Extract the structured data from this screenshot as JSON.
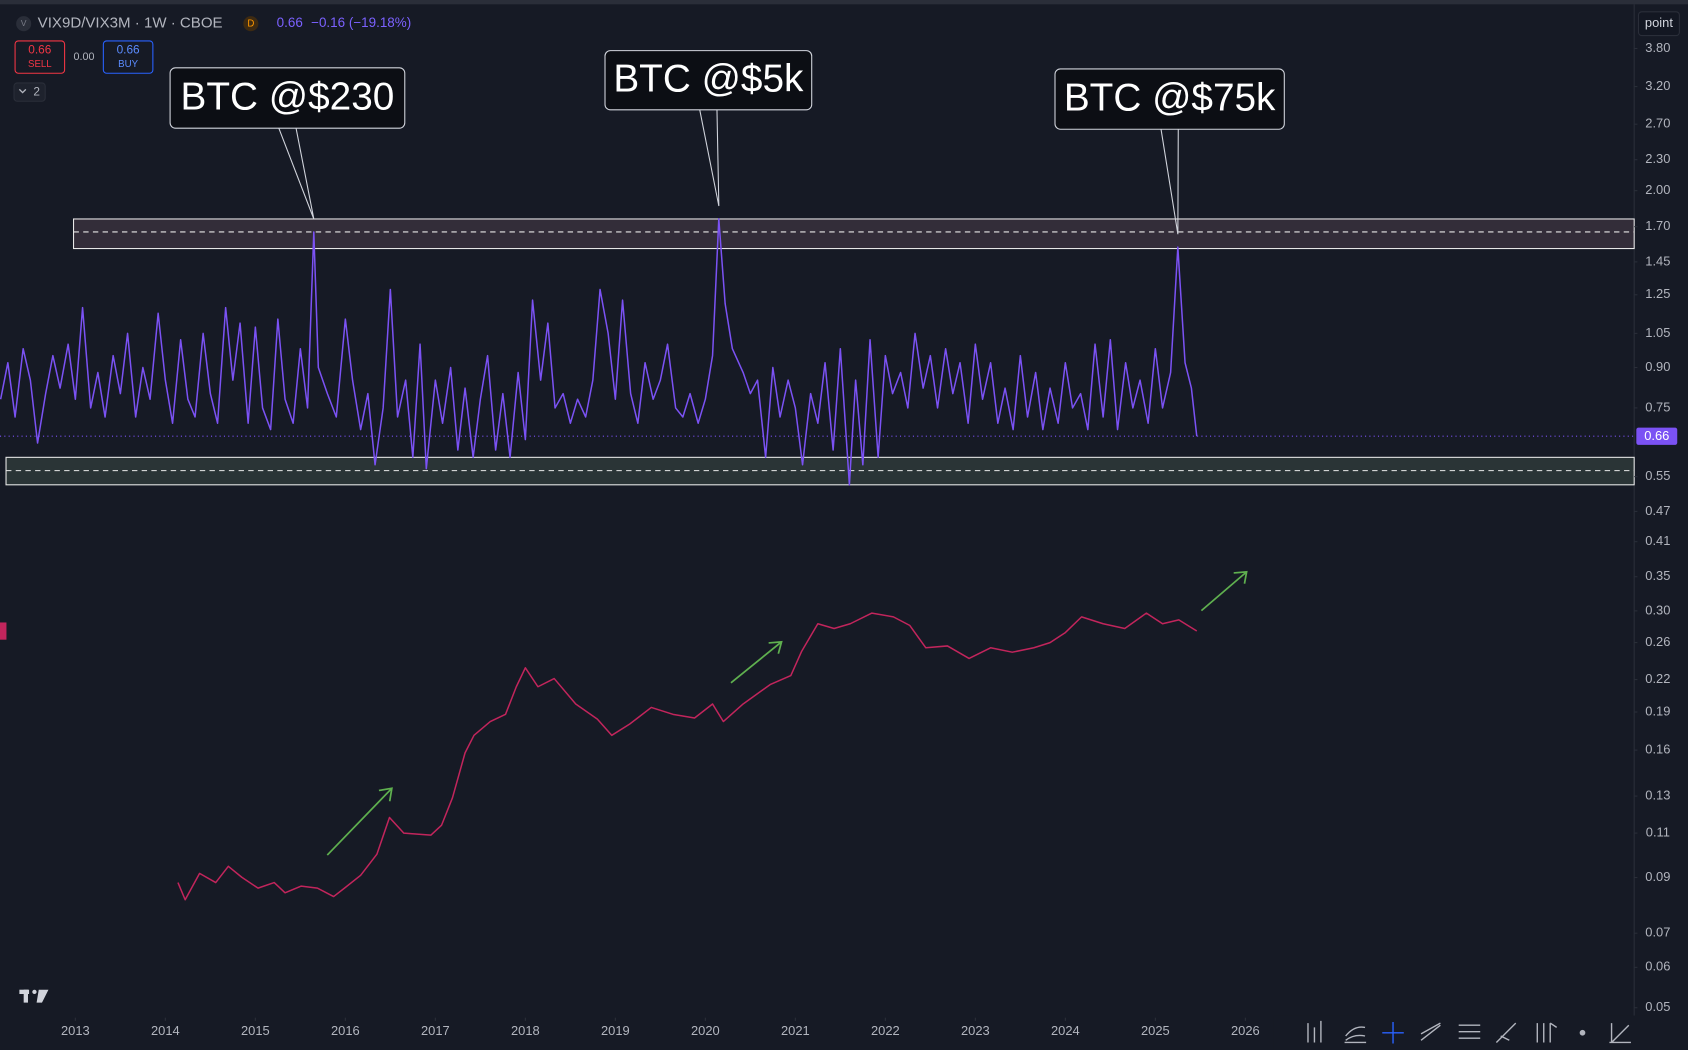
{
  "chart_data": {
    "type": "line",
    "title": "VIX9D/VIX3M · 1W · CBOE",
    "symbol_icon": "V",
    "session_badge": "D",
    "quote": "0.66",
    "change": "−0.16 (−19.18%)",
    "trade": {
      "sell": "0.66",
      "sell_label": "SELL",
      "spread": "0.00",
      "buy": "0.66",
      "buy_label": "BUY"
    },
    "indicator_count": "2",
    "mode_button": "point",
    "log_scale": true,
    "grid": false,
    "xlim": [
      2012.163,
      2030.32
    ],
    "ylim": [
      0.0478,
      4.73
    ],
    "xticks": [
      2013,
      2014,
      2015,
      2016,
      2017,
      2018,
      2019,
      2020,
      2021,
      2022,
      2023,
      2024,
      2025,
      2026
    ],
    "yticks": [
      {
        "value": 3.8,
        "label": "3.80"
      },
      {
        "value": 3.2,
        "label": "3.20"
      },
      {
        "value": 2.7,
        "label": "2.70"
      },
      {
        "value": 2.3,
        "label": "2.30"
      },
      {
        "value": 2.0,
        "label": "2.00"
      },
      {
        "value": 1.7,
        "label": "1.70"
      },
      1.45,
      1.25,
      1.05,
      {
        "value": 0.9,
        "label": "0.90"
      },
      0.75,
      0.55,
      0.47,
      0.41,
      0.35,
      {
        "value": 0.3,
        "label": "0.30"
      },
      0.26,
      0.22,
      0.19,
      0.16,
      0.13,
      0.11,
      0.09,
      0.07,
      0.06,
      0.05
    ],
    "last_price": {
      "value": 0.66,
      "label": "0.66"
    },
    "bands": [
      {
        "top": 1.76,
        "mid": 1.66,
        "bottom": 1.54,
        "from": 2012.98,
        "color": "#e8a0b8"
      },
      {
        "top": 0.6,
        "mid": 0.565,
        "bottom": 0.53,
        "from": 2012.23,
        "color": "#a8d8a0"
      }
    ],
    "annotations": [
      {
        "text": "BTC @$230",
        "x": 2015.65,
        "y": 1.66
      },
      {
        "text": "BTC @$5k",
        "x": 2020.15,
        "y": 1.76
      },
      {
        "text": "BTC @$75k",
        "x": 2025.25,
        "y": 1.55
      }
    ],
    "series": [
      {
        "color": "#7b52f4",
        "x": [
          2012.17,
          2012.25,
          2012.33,
          2012.42,
          2012.5,
          2012.58,
          2012.67,
          2012.75,
          2012.83,
          2012.92,
          2013.0,
          2013.08,
          2013.17,
          2013.25,
          2013.33,
          2013.42,
          2013.5,
          2013.58,
          2013.67,
          2013.75,
          2013.83,
          2013.92,
          2014.0,
          2014.08,
          2014.17,
          2014.25,
          2014.33,
          2014.42,
          2014.5,
          2014.58,
          2014.67,
          2014.75,
          2014.83,
          2014.92,
          2015.0,
          2015.08,
          2015.17,
          2015.25,
          2015.33,
          2015.42,
          2015.5,
          2015.58,
          2015.65,
          2015.7,
          2015.8,
          2015.9,
          2016.0,
          2016.08,
          2016.17,
          2016.25,
          2016.33,
          2016.42,
          2016.5,
          2016.58,
          2016.67,
          2016.75,
          2016.83,
          2016.9,
          2017.0,
          2017.08,
          2017.17,
          2017.25,
          2017.33,
          2017.42,
          2017.5,
          2017.58,
          2017.67,
          2017.75,
          2017.83,
          2017.92,
          2018.0,
          2018.08,
          2018.17,
          2018.25,
          2018.33,
          2018.42,
          2018.5,
          2018.58,
          2018.67,
          2018.75,
          2018.83,
          2018.92,
          2019.0,
          2019.08,
          2019.17,
          2019.25,
          2019.33,
          2019.42,
          2019.5,
          2019.58,
          2019.67,
          2019.75,
          2019.83,
          2019.92,
          2020.0,
          2020.08,
          2020.15,
          2020.22,
          2020.3,
          2020.42,
          2020.5,
          2020.58,
          2020.67,
          2020.75,
          2020.83,
          2020.92,
          2021.0,
          2021.08,
          2021.17,
          2021.25,
          2021.33,
          2021.42,
          2021.5,
          2021.6,
          2021.67,
          2021.75,
          2021.83,
          2021.92,
          2022.0,
          2022.08,
          2022.17,
          2022.25,
          2022.33,
          2022.42,
          2022.5,
          2022.58,
          2022.67,
          2022.75,
          2022.83,
          2022.92,
          2023.0,
          2023.08,
          2023.17,
          2023.25,
          2023.33,
          2023.42,
          2023.5,
          2023.58,
          2023.67,
          2023.75,
          2023.83,
          2023.92,
          2024.0,
          2024.08,
          2024.17,
          2024.25,
          2024.33,
          2024.42,
          2024.5,
          2024.58,
          2024.67,
          2024.75,
          2024.83,
          2024.92,
          2025.0,
          2025.08,
          2025.17,
          2025.25,
          2025.33,
          2025.4,
          2025.46
        ],
        "values": [
          0.78,
          0.92,
          0.72,
          0.98,
          0.85,
          0.64,
          0.8,
          0.95,
          0.82,
          1.0,
          0.78,
          1.18,
          0.75,
          0.88,
          0.72,
          0.95,
          0.8,
          1.05,
          0.72,
          0.9,
          0.78,
          1.15,
          0.85,
          0.7,
          1.02,
          0.78,
          0.72,
          1.05,
          0.8,
          0.7,
          1.18,
          0.85,
          1.1,
          0.7,
          1.08,
          0.75,
          0.68,
          1.12,
          0.78,
          0.7,
          0.98,
          0.75,
          1.66,
          0.9,
          0.8,
          0.72,
          1.12,
          0.85,
          0.68,
          0.8,
          0.58,
          0.75,
          1.28,
          0.72,
          0.85,
          0.6,
          1.0,
          0.57,
          0.85,
          0.7,
          0.9,
          0.62,
          0.82,
          0.6,
          0.78,
          0.95,
          0.62,
          0.8,
          0.6,
          0.88,
          0.65,
          1.22,
          0.85,
          1.1,
          0.75,
          0.8,
          0.7,
          0.78,
          0.72,
          0.85,
          1.28,
          1.05,
          0.78,
          1.22,
          0.8,
          0.7,
          0.92,
          0.78,
          0.85,
          1.0,
          0.75,
          0.72,
          0.8,
          0.7,
          0.78,
          0.95,
          1.76,
          1.2,
          0.98,
          0.88,
          0.8,
          0.85,
          0.6,
          0.9,
          0.72,
          0.85,
          0.75,
          0.58,
          0.8,
          0.7,
          0.92,
          0.62,
          0.98,
          0.53,
          0.85,
          0.58,
          1.02,
          0.6,
          0.95,
          0.8,
          0.88,
          0.75,
          1.05,
          0.82,
          0.95,
          0.75,
          0.98,
          0.8,
          0.92,
          0.7,
          1.0,
          0.78,
          0.92,
          0.7,
          0.82,
          0.68,
          0.95,
          0.72,
          0.88,
          0.68,
          0.82,
          0.7,
          0.92,
          0.75,
          0.8,
          0.68,
          1.0,
          0.72,
          1.02,
          0.68,
          0.92,
          0.75,
          0.85,
          0.7,
          0.98,
          0.75,
          0.88,
          1.55,
          0.92,
          0.82,
          0.66
        ]
      },
      {
        "color": "#c2255c",
        "x": [
          2014.14,
          2014.22,
          2014.38,
          2014.56,
          2014.7,
          2014.85,
          2015.03,
          2015.21,
          2015.33,
          2015.51,
          2015.69,
          2015.87,
          2015.99,
          2016.17,
          2016.35,
          2016.49,
          2016.65,
          2016.95,
          2017.07,
          2017.19,
          2017.33,
          2017.43,
          2017.61,
          2017.78,
          2017.9,
          2018.0,
          2018.14,
          2018.32,
          2018.56,
          2018.8,
          2018.96,
          2019.16,
          2019.4,
          2019.64,
          2019.88,
          2020.08,
          2020.2,
          2020.42,
          2020.72,
          2020.95,
          2021.07,
          2021.25,
          2021.43,
          2021.61,
          2021.85,
          2022.09,
          2022.27,
          2022.45,
          2022.69,
          2022.93,
          2023.17,
          2023.41,
          2023.65,
          2023.83,
          2024.0,
          2024.18,
          2024.42,
          2024.66,
          2024.9,
          2025.08,
          2025.26,
          2025.46
        ],
        "values": [
          0.088,
          0.0814,
          0.0917,
          0.088,
          0.0947,
          0.0901,
          0.0858,
          0.088,
          0.084,
          0.0866,
          0.0858,
          0.0826,
          0.0858,
          0.0909,
          0.1,
          0.118,
          0.11,
          0.109,
          0.114,
          0.129,
          0.158,
          0.171,
          0.182,
          0.188,
          0.213,
          0.232,
          0.213,
          0.221,
          0.197,
          0.184,
          0.171,
          0.18,
          0.194,
          0.188,
          0.185,
          0.197,
          0.182,
          0.197,
          0.215,
          0.224,
          0.25,
          0.283,
          0.277,
          0.283,
          0.297,
          0.292,
          0.281,
          0.254,
          0.256,
          0.242,
          0.254,
          0.249,
          0.254,
          0.26,
          0.272,
          0.292,
          0.283,
          0.277,
          0.297,
          0.283,
          0.288,
          0.274
        ]
      }
    ]
  }
}
